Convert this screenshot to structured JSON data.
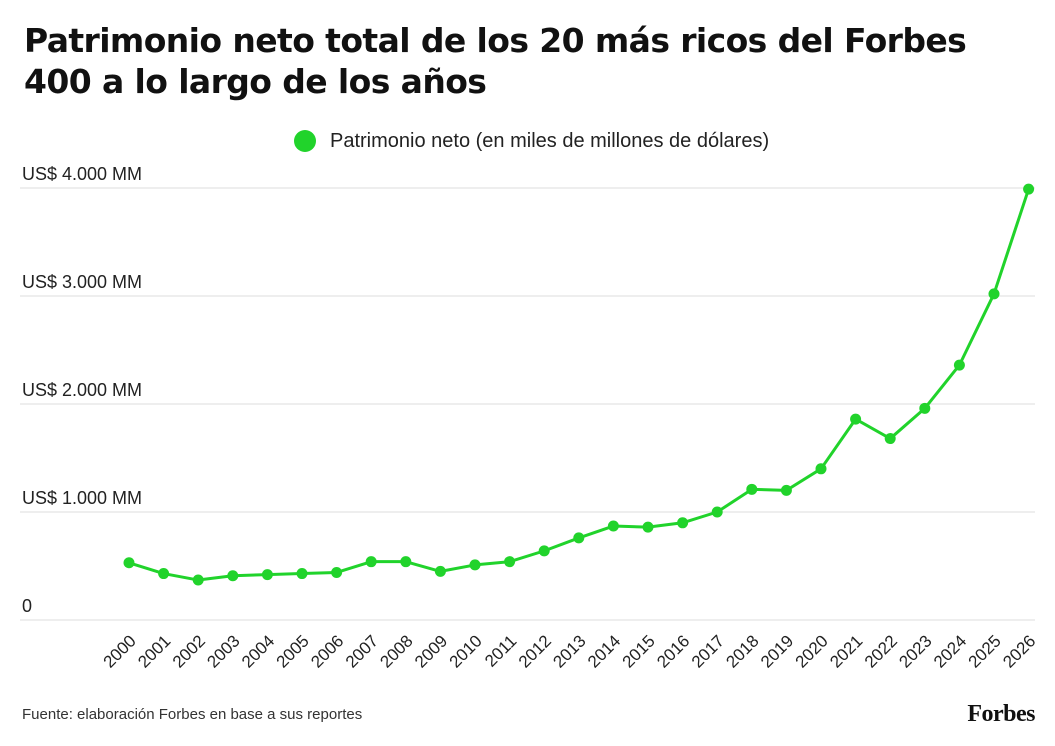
{
  "title": "Patrimonio neto total de los 20 más ricos del Forbes 400 a lo largo de los años",
  "source": "Fuente: elaboración Forbes en base a sus reportes",
  "brand": "Forbes",
  "colors": {
    "series": "#21d32b",
    "grid": "#dddddd",
    "text": "#111111"
  },
  "chart_data": {
    "type": "line",
    "title": "Patrimonio neto total de los 20 más ricos del Forbes 400 a lo largo de los años",
    "xlabel": "",
    "ylabel": "",
    "ylim": [
      0,
      4000
    ],
    "grid": true,
    "legend_position": "top-center",
    "yticks": [
      {
        "value": 0,
        "label": "0"
      },
      {
        "value": 1000,
        "label": "US$ 1.000 MM"
      },
      {
        "value": 2000,
        "label": "US$ 2.000 MM"
      },
      {
        "value": 3000,
        "label": "US$ 3.000 MM"
      },
      {
        "value": 4000,
        "label": "US$ 4.000 MM"
      }
    ],
    "categories": [
      "2000",
      "2001",
      "2002",
      "2003",
      "2004",
      "2005",
      "2006",
      "2007",
      "2008",
      "2009",
      "2010",
      "2011",
      "2012",
      "2013",
      "2014",
      "2015",
      "2016",
      "2017",
      "2018",
      "2019",
      "2020",
      "2021",
      "2022",
      "2023",
      "2024",
      "2025",
      "2026"
    ],
    "series": [
      {
        "name": "Patrimonio neto (en miles de millones de dólares)",
        "values": [
          530,
          430,
          370,
          410,
          420,
          430,
          440,
          540,
          540,
          450,
          510,
          540,
          640,
          760,
          870,
          860,
          900,
          1000,
          1210,
          1200,
          1400,
          1860,
          1680,
          1960,
          2360,
          3020,
          3990
        ]
      }
    ]
  }
}
